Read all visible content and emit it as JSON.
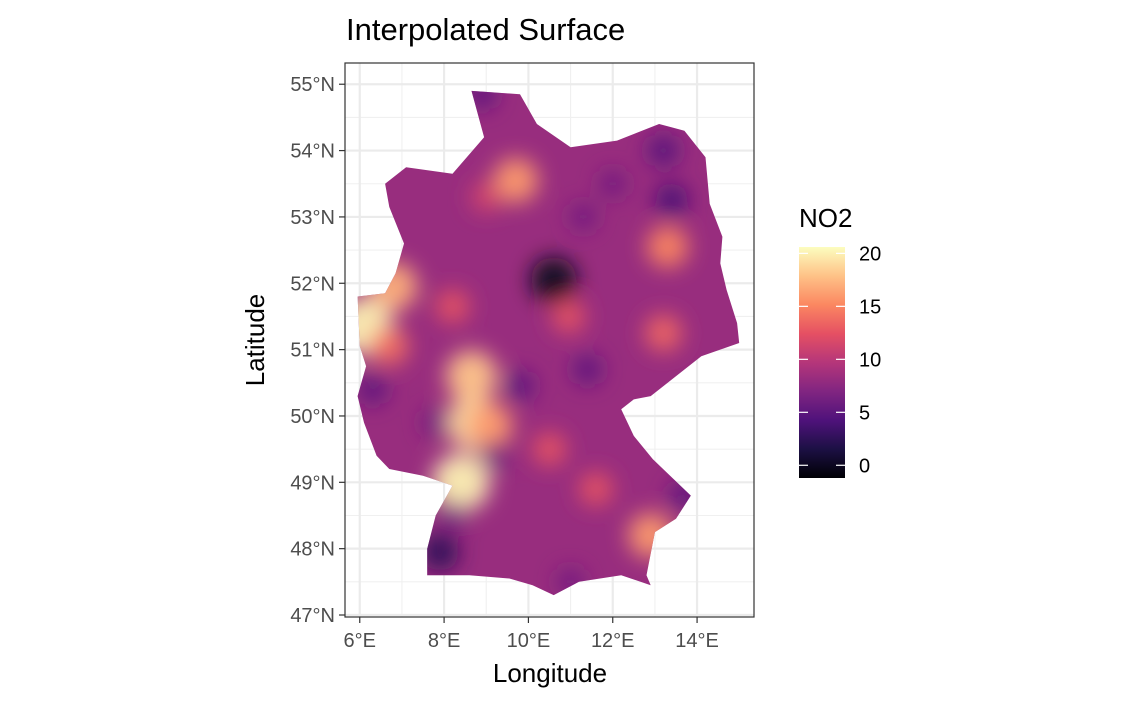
{
  "title": "Interpolated Surface",
  "x_axis": {
    "label": "Longitude",
    "range": [
      5.65,
      15.35
    ],
    "ticks": [
      {
        "value": 6,
        "label": "6°E"
      },
      {
        "value": 8,
        "label": "8°E"
      },
      {
        "value": 10,
        "label": "10°E"
      },
      {
        "value": 12,
        "label": "12°E"
      },
      {
        "value": 14,
        "label": "14°E"
      }
    ]
  },
  "y_axis": {
    "label": "Latitude",
    "range": [
      46.97,
      55.32
    ],
    "ticks": [
      {
        "value": 55,
        "label": "55°N"
      },
      {
        "value": 54,
        "label": "54°N"
      },
      {
        "value": 53,
        "label": "53°N"
      },
      {
        "value": 52,
        "label": "52°N"
      },
      {
        "value": 51,
        "label": "51°N"
      },
      {
        "value": 50,
        "label": "50°N"
      },
      {
        "value": 49,
        "label": "49°N"
      },
      {
        "value": 48,
        "label": "48°N"
      },
      {
        "value": 47,
        "label": "47°N"
      }
    ]
  },
  "legend": {
    "title": "NO2",
    "min": -1.2,
    "max": 20.6,
    "ticks": [
      {
        "value": 20,
        "label": "20"
      },
      {
        "value": 15,
        "label": "15"
      },
      {
        "value": 10,
        "label": "10"
      },
      {
        "value": 5,
        "label": "5"
      },
      {
        "value": 0,
        "label": "0"
      }
    ],
    "palette": [
      "#000004",
      "#1c1044",
      "#4f127b",
      "#812581",
      "#b5367a",
      "#e55063",
      "#fb8761",
      "#fec287",
      "#fcfdbf"
    ]
  },
  "chart_data": {
    "type": "heatmap",
    "title": "Interpolated Surface",
    "xlabel": "Longitude",
    "ylabel": "Latitude",
    "value_name": "NO2",
    "xlim": [
      5.65,
      15.35
    ],
    "ylim": [
      46.97,
      55.32
    ],
    "grid": true,
    "legend_position": "right",
    "value_range": [
      0,
      20
    ],
    "background_value": 8.2,
    "boundary": [
      [
        8.65,
        54.9
      ],
      [
        9.8,
        54.85
      ],
      [
        10.2,
        54.4
      ],
      [
        11.0,
        54.05
      ],
      [
        12.1,
        54.15
      ],
      [
        13.1,
        54.4
      ],
      [
        13.7,
        54.3
      ],
      [
        14.2,
        53.9
      ],
      [
        14.3,
        53.2
      ],
      [
        14.6,
        52.7
      ],
      [
        14.55,
        52.3
      ],
      [
        14.7,
        51.9
      ],
      [
        14.95,
        51.4
      ],
      [
        15.0,
        51.1
      ],
      [
        14.1,
        50.9
      ],
      [
        12.9,
        50.3
      ],
      [
        12.5,
        50.25
      ],
      [
        12.2,
        50.1
      ],
      [
        12.5,
        49.7
      ],
      [
        12.95,
        49.35
      ],
      [
        13.85,
        48.8
      ],
      [
        13.5,
        48.45
      ],
      [
        13.0,
        48.25
      ],
      [
        12.8,
        47.6
      ],
      [
        12.9,
        47.45
      ],
      [
        12.2,
        47.6
      ],
      [
        11.2,
        47.5
      ],
      [
        10.6,
        47.3
      ],
      [
        10.1,
        47.45
      ],
      [
        9.55,
        47.55
      ],
      [
        8.6,
        47.6
      ],
      [
        7.6,
        47.6
      ],
      [
        7.6,
        48.0
      ],
      [
        7.8,
        48.5
      ],
      [
        8.2,
        48.95
      ],
      [
        7.5,
        49.1
      ],
      [
        6.7,
        49.2
      ],
      [
        6.4,
        49.4
      ],
      [
        6.1,
        49.9
      ],
      [
        5.95,
        50.3
      ],
      [
        6.15,
        50.75
      ],
      [
        6.0,
        51.05
      ],
      [
        5.95,
        51.8
      ],
      [
        6.6,
        51.85
      ],
      [
        6.85,
        52.15
      ],
      [
        7.05,
        52.6
      ],
      [
        6.7,
        53.15
      ],
      [
        6.6,
        53.5
      ],
      [
        7.1,
        53.75
      ],
      [
        8.2,
        53.65
      ],
      [
        8.95,
        54.2
      ]
    ],
    "hotspots": [
      {
        "lon": 6.8,
        "lat": 51.95,
        "value": 17.0
      },
      {
        "lon": 6.1,
        "lat": 51.35,
        "value": 20.0
      },
      {
        "lon": 6.7,
        "lat": 51.05,
        "value": 14.0
      },
      {
        "lon": 8.4,
        "lat": 49.0,
        "value": 20.0
      },
      {
        "lon": 8.7,
        "lat": 49.9,
        "value": 19.0
      },
      {
        "lon": 9.1,
        "lat": 49.85,
        "value": 16.0
      },
      {
        "lon": 8.65,
        "lat": 50.6,
        "value": 18.0
      },
      {
        "lon": 9.7,
        "lat": 53.55,
        "value": 16.0
      },
      {
        "lon": 13.3,
        "lat": 52.55,
        "value": 15.0
      },
      {
        "lon": 13.2,
        "lat": 51.25,
        "value": 13.5
      },
      {
        "lon": 12.9,
        "lat": 48.2,
        "value": 16.0
      },
      {
        "lon": 11.6,
        "lat": 48.9,
        "value": 12.5
      },
      {
        "lon": 10.5,
        "lat": 49.5,
        "value": 12.5
      },
      {
        "lon": 8.2,
        "lat": 51.65,
        "value": 12.5
      },
      {
        "lon": 10.95,
        "lat": 51.5,
        "value": 12.5
      },
      {
        "lon": 9.0,
        "lat": 53.3,
        "value": 11.5
      },
      {
        "lon": 10.6,
        "lat": 52.05,
        "value": 0.0
      },
      {
        "lon": 7.9,
        "lat": 47.95,
        "value": 2.5
      },
      {
        "lon": 13.4,
        "lat": 53.25,
        "value": 4.0
      },
      {
        "lon": 13.2,
        "lat": 54.0,
        "value": 4.5
      },
      {
        "lon": 13.7,
        "lat": 48.8,
        "value": 5.0
      },
      {
        "lon": 11.4,
        "lat": 50.7,
        "value": 5.0
      },
      {
        "lon": 9.8,
        "lat": 50.45,
        "value": 5.0
      },
      {
        "lon": 6.3,
        "lat": 50.4,
        "value": 5.0
      },
      {
        "lon": 11.3,
        "lat": 53.0,
        "value": 6.0
      },
      {
        "lon": 12.0,
        "lat": 53.5,
        "value": 6.0
      },
      {
        "lon": 7.8,
        "lat": 49.9,
        "value": 6.0
      },
      {
        "lon": 8.9,
        "lat": 54.85,
        "value": 5.0
      },
      {
        "lon": 8.2,
        "lat": 48.5,
        "value": 6.0
      },
      {
        "lon": 9.2,
        "lat": 49.4,
        "value": 6.0
      },
      {
        "lon": 11.0,
        "lat": 47.5,
        "value": 6.0
      }
    ]
  }
}
